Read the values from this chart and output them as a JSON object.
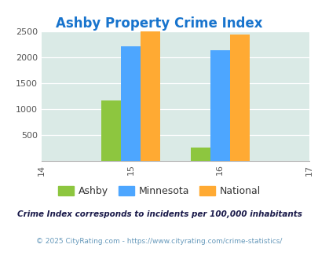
{
  "title": "Ashby Property Crime Index",
  "title_color": "#1874cd",
  "years": [
    2015,
    2016
  ],
  "ashby": [
    1160,
    245
  ],
  "minnesota": [
    2210,
    2130
  ],
  "national": [
    2490,
    2440
  ],
  "colors": {
    "ashby": "#8dc63f",
    "minnesota": "#4da6ff",
    "national": "#ffaa33"
  },
  "bg_color": "#daeae6",
  "ylim": [
    0,
    2500
  ],
  "yticks": [
    0,
    500,
    1000,
    1500,
    2000,
    2500
  ],
  "xlim": [
    2014,
    2017
  ],
  "xticks": [
    2014,
    2015,
    2016,
    2017
  ],
  "legend_labels": [
    "Ashby",
    "Minnesota",
    "National"
  ],
  "footnote1": "Crime Index corresponds to incidents per 100,000 inhabitants",
  "footnote2": "© 2025 CityRating.com - https://www.cityrating.com/crime-statistics/",
  "footnote1_color": "#1a1a4a",
  "footnote2_color": "#6699bb",
  "bar_width": 0.22
}
